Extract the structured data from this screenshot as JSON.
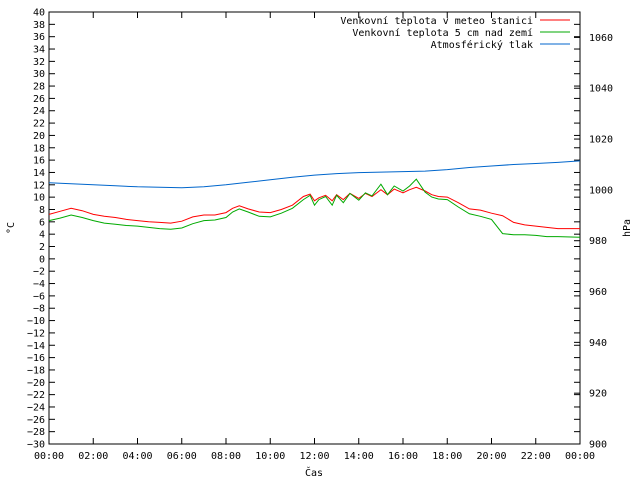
{
  "chart_data": {
    "type": "line",
    "xlabel": "Čas",
    "ylabel": "°C",
    "ylabel_right": "hPa",
    "ylim": [
      -30,
      40
    ],
    "ylim_right": [
      900,
      1070
    ],
    "xlim": [
      0,
      24
    ],
    "x_ticks": [
      0,
      2,
      4,
      6,
      8,
      10,
      12,
      14,
      16,
      18,
      20,
      22,
      24
    ],
    "x_tick_labels": [
      "00:00",
      "02:00",
      "04:00",
      "06:00",
      "08:00",
      "10:00",
      "12:00",
      "14:00",
      "16:00",
      "18:00",
      "20:00",
      "22:00",
      "00:00"
    ],
    "y_ticks": [
      -30,
      -28,
      -26,
      -24,
      -22,
      -20,
      -18,
      -16,
      -14,
      -12,
      -10,
      -8,
      -6,
      -4,
      -2,
      0,
      2,
      4,
      6,
      8,
      10,
      12,
      14,
      16,
      18,
      20,
      22,
      24,
      26,
      28,
      30,
      32,
      34,
      36,
      38,
      40
    ],
    "y_right_ticks": [
      900,
      920,
      940,
      960,
      980,
      1000,
      1020,
      1040,
      1060
    ],
    "grid": false,
    "legend_position": "top-right",
    "series": [
      {
        "name": "Venkovní teplota v meteo stanici",
        "color": "#ff0000",
        "axis": "left",
        "x": [
          0,
          0.5,
          1,
          1.5,
          2,
          2.5,
          3,
          3.5,
          4,
          4.5,
          5,
          5.5,
          6,
          6.5,
          7,
          7.5,
          8,
          8.3,
          8.6,
          9,
          9.5,
          10,
          10.5,
          11,
          11.5,
          11.8,
          12,
          12.2,
          12.5,
          12.8,
          13,
          13.3,
          13.6,
          14,
          14.3,
          14.6,
          15,
          15.3,
          15.6,
          16,
          16.3,
          16.6,
          17,
          17.3,
          17.6,
          18,
          18.5,
          19,
          19.5,
          20,
          20.5,
          21,
          21.5,
          22,
          22.5,
          23,
          24
        ],
        "values": [
          7.2,
          7.7,
          8.2,
          7.8,
          7.2,
          6.9,
          6.7,
          6.4,
          6.2,
          6.0,
          5.9,
          5.8,
          6.1,
          6.8,
          7.1,
          7.1,
          7.5,
          8.2,
          8.6,
          8.1,
          7.6,
          7.5,
          8.0,
          8.7,
          10.1,
          10.5,
          9.4,
          9.9,
          10.3,
          9.4,
          10.4,
          9.6,
          10.6,
          9.8,
          10.6,
          10.1,
          11.2,
          10.4,
          11.3,
          10.7,
          11.2,
          11.6,
          11.0,
          10.4,
          10.1,
          10.0,
          9.1,
          8.1,
          7.9,
          7.4,
          7.0,
          5.9,
          5.5,
          5.3,
          5.1,
          4.9,
          4.9
        ]
      },
      {
        "name": "Venkovní teplota 5 cm nad zemí",
        "color": "#00aa00",
        "axis": "left",
        "x": [
          0,
          0.5,
          1,
          1.5,
          2,
          2.5,
          3,
          3.5,
          4,
          4.5,
          5,
          5.5,
          6,
          6.5,
          7,
          7.5,
          8,
          8.3,
          8.6,
          9,
          9.5,
          10,
          10.5,
          11,
          11.5,
          11.8,
          12,
          12.2,
          12.5,
          12.8,
          13,
          13.3,
          13.6,
          14,
          14.3,
          14.6,
          15,
          15.3,
          15.6,
          16,
          16.3,
          16.6,
          17,
          17.3,
          17.6,
          18,
          18.5,
          19,
          19.5,
          20,
          20.5,
          21,
          21.5,
          22,
          22.5,
          23,
          24
        ],
        "values": [
          6.2,
          6.6,
          7.1,
          6.7,
          6.2,
          5.8,
          5.6,
          5.4,
          5.3,
          5.1,
          4.9,
          4.8,
          5.0,
          5.7,
          6.2,
          6.3,
          6.7,
          7.6,
          8.1,
          7.6,
          6.9,
          6.8,
          7.4,
          8.2,
          9.6,
          10.3,
          8.7,
          9.6,
          10.1,
          8.7,
          10.3,
          9.1,
          10.6,
          9.5,
          10.7,
          10.2,
          12.1,
          10.4,
          11.8,
          11.0,
          11.8,
          12.9,
          10.8,
          10.0,
          9.7,
          9.6,
          8.4,
          7.3,
          6.9,
          6.4,
          4.1,
          3.9,
          3.9,
          3.8,
          3.6,
          3.6,
          3.5
        ]
      },
      {
        "name": "Atmosférický tlak",
        "color": "#0066cc",
        "axis": "right",
        "x": [
          0,
          1,
          2,
          3,
          4,
          5,
          6,
          7,
          8,
          9,
          10,
          11,
          12,
          13,
          14,
          15,
          16,
          17,
          18,
          19,
          20,
          21,
          22,
          23,
          24
        ],
        "values": [
          1002.8,
          1002.4,
          1002.0,
          1001.6,
          1001.2,
          1001.0,
          1000.8,
          1001.2,
          1002.0,
          1003.0,
          1004.0,
          1005.0,
          1005.8,
          1006.4,
          1006.8,
          1007.0,
          1007.2,
          1007.4,
          1008.0,
          1008.8,
          1009.4,
          1010.0,
          1010.4,
          1010.8,
          1011.4
        ]
      }
    ]
  }
}
